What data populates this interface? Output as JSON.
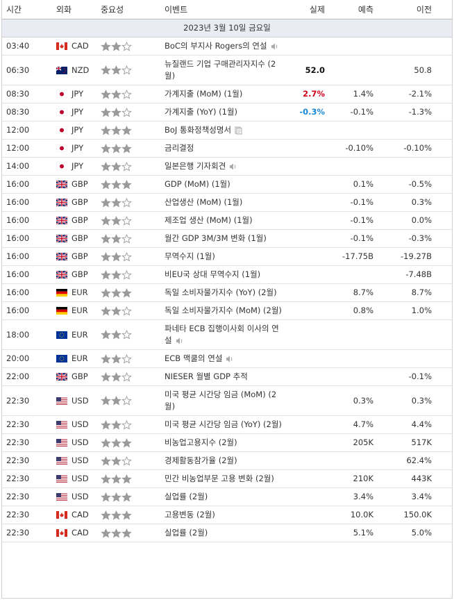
{
  "header": {
    "time": "시간",
    "currency": "외화",
    "importance": "중요성",
    "event": "이벤트",
    "actual": "실제",
    "forecast": "예측",
    "previous": "이전"
  },
  "date": "2023년 3월 10일 금요일",
  "rows": [
    {
      "time": "03:40",
      "currency": "CAD",
      "importance": 2,
      "event": "BoC의 부지사 Rogers의 연설",
      "icon": "speaker"
    },
    {
      "time": "06:30",
      "currency": "NZD",
      "importance": 2,
      "event": "뉴질랜드 기업 구매관리자지수 (2월)",
      "actual": "52.0",
      "actual_color": "#111111",
      "previous": "50.8"
    },
    {
      "time": "08:30",
      "currency": "JPY",
      "importance": 2,
      "event": "가계지출 (MoM) (1월)",
      "actual": "2.7%",
      "actual_color": "#d0021b",
      "forecast": "1.4%",
      "previous": "-2.1%"
    },
    {
      "time": "08:30",
      "currency": "JPY",
      "importance": 2,
      "event": "가계지출 (YoY) (1월)",
      "actual": "-0.3%",
      "actual_color": "#1a88d8",
      "forecast": "-0.1%",
      "previous": "-1.3%"
    },
    {
      "time": "12:00",
      "currency": "JPY",
      "importance": 3,
      "event": "BoJ 통화정책성명서",
      "icon": "document"
    },
    {
      "time": "12:00",
      "currency": "JPY",
      "importance": 3,
      "event": "금리결정",
      "forecast": "-0.10%",
      "previous": "-0.10%"
    },
    {
      "time": "14:00",
      "currency": "JPY",
      "importance": 2,
      "event": "일본은행 기자회견",
      "icon": "speaker"
    },
    {
      "time": "16:00",
      "currency": "GBP",
      "importance": 3,
      "event": "GDP (MoM) (1월)",
      "forecast": "0.1%",
      "previous": "-0.5%"
    },
    {
      "time": "16:00",
      "currency": "GBP",
      "importance": 2,
      "event": "산업생산 (MoM) (1월)",
      "forecast": "-0.1%",
      "previous": "0.3%"
    },
    {
      "time": "16:00",
      "currency": "GBP",
      "importance": 2,
      "event": "제조업 생산 (MoM) (1월)",
      "forecast": "-0.1%",
      "previous": "0.0%"
    },
    {
      "time": "16:00",
      "currency": "GBP",
      "importance": 2,
      "event": "월간 GDP 3M/3M 변화 (1월)",
      "forecast": "-0.1%",
      "previous": "-0.3%"
    },
    {
      "time": "16:00",
      "currency": "GBP",
      "importance": 2,
      "event": "무역수지 (1월)",
      "forecast": "-17.75B",
      "previous": "-19.27B"
    },
    {
      "time": "16:00",
      "currency": "GBP",
      "importance": 2,
      "event": "비EU국 상대 무역수지 (1월)",
      "previous": "-7.48B"
    },
    {
      "time": "16:00",
      "currency": "EUR",
      "importance": 3,
      "event": "독일 소비자물가지수 (YoY) (2월)",
      "forecast": "8.7%",
      "previous": "8.7%"
    },
    {
      "time": "16:00",
      "currency": "EUR",
      "importance": 2,
      "event": "독일 소비자물가지수 (MoM) (2월)",
      "forecast": "0.8%",
      "previous": "1.0%"
    },
    {
      "time": "18:00",
      "currency": "EUR",
      "importance": 2,
      "event": "파네타 ECB 집행이사회 이사의 연설",
      "icon": "speaker"
    },
    {
      "time": "20:00",
      "currency": "EUR",
      "importance": 2,
      "event": "ECB 맥쿨의 연설",
      "icon": "speaker"
    },
    {
      "time": "22:00",
      "currency": "GBP",
      "importance": 2,
      "event": "NIESER 월별 GDP 추적",
      "previous": "-0.1%"
    },
    {
      "time": "22:30",
      "currency": "USD",
      "importance": 2,
      "event": "미국 평균 시간당 임금 (MoM) (2월)",
      "forecast": "0.3%",
      "previous": "0.3%"
    },
    {
      "time": "22:30",
      "currency": "USD",
      "importance": 2,
      "event": "미국 평균 시간당 임금 (YoY) (2월)",
      "forecast": "4.7%",
      "previous": "4.4%"
    },
    {
      "time": "22:30",
      "currency": "USD",
      "importance": 3,
      "event": "비농업고용지수 (2월)",
      "forecast": "205K",
      "previous": "517K"
    },
    {
      "time": "22:30",
      "currency": "USD",
      "importance": 2,
      "event": "경제활동참가율 (2월)",
      "previous": "62.4%"
    },
    {
      "time": "22:30",
      "currency": "USD",
      "importance": 3,
      "event": "민간 비농업부문 고용 변화 (2월)",
      "forecast": "210K",
      "previous": "443K"
    },
    {
      "time": "22:30",
      "currency": "USD",
      "importance": 3,
      "event": "실업률 (2월)",
      "forecast": "3.4%",
      "previous": "3.4%"
    },
    {
      "time": "22:30",
      "currency": "CAD",
      "importance": 3,
      "event": "고용변동 (2월)",
      "forecast": "10.0K",
      "previous": "150.0K"
    },
    {
      "time": "22:30",
      "currency": "CAD",
      "importance": 3,
      "event": "실업률 (2월)",
      "forecast": "5.1%",
      "previous": "5.0%"
    }
  ]
}
